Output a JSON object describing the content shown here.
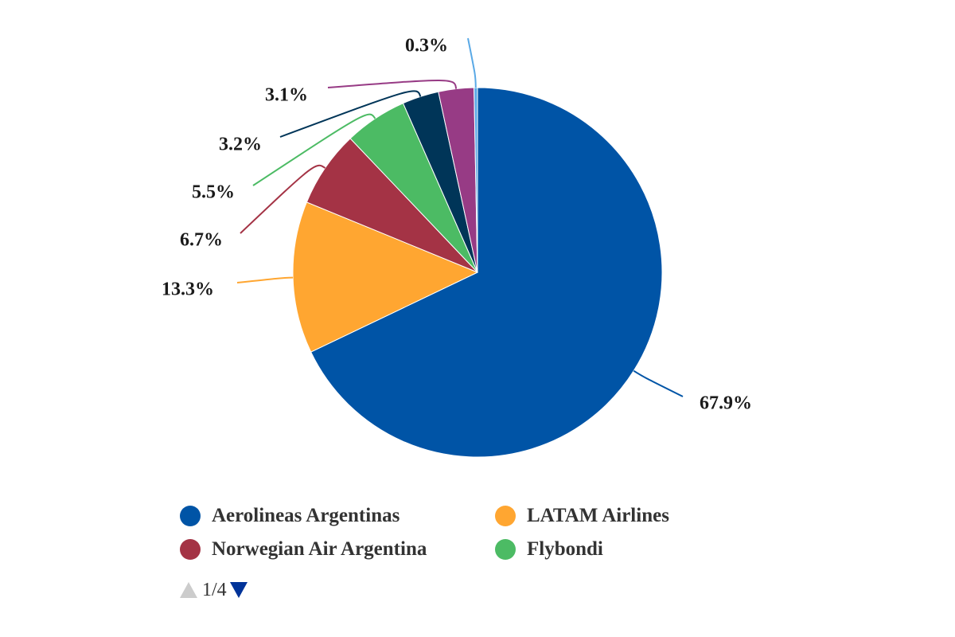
{
  "chart_data": {
    "type": "pie",
    "slices": [
      {
        "name": "Aerolineas Argentinas",
        "value": 67.9,
        "label": "67.9%",
        "color": "#0054a6"
      },
      {
        "name": "LATAM Airlines",
        "value": 13.3,
        "label": "13.3%",
        "color": "#ffa631"
      },
      {
        "name": "Norwegian Air Argentina",
        "value": 6.7,
        "label": "6.7%",
        "color": "#a43345"
      },
      {
        "name": "Flybondi",
        "value": 5.5,
        "label": "5.5%",
        "color": "#4cbb64"
      },
      {
        "name": "",
        "value": 3.2,
        "label": "3.2%",
        "color": "#003558"
      },
      {
        "name": "",
        "value": 3.1,
        "label": "3.1%",
        "color": "#973b85"
      },
      {
        "name": "",
        "value": 0.3,
        "label": "0.3%",
        "color": "#5aa9e6"
      }
    ],
    "legend": {
      "items": [
        {
          "name": "Aerolineas Argentinas",
          "color": "#0054a6"
        },
        {
          "name": "LATAM Airlines",
          "color": "#ffa631"
        },
        {
          "name": "Norwegian Air Argentina",
          "color": "#a43345"
        },
        {
          "name": "Flybondi",
          "color": "#4cbb64"
        }
      ],
      "placement": "bottom",
      "page": "1/4"
    }
  }
}
